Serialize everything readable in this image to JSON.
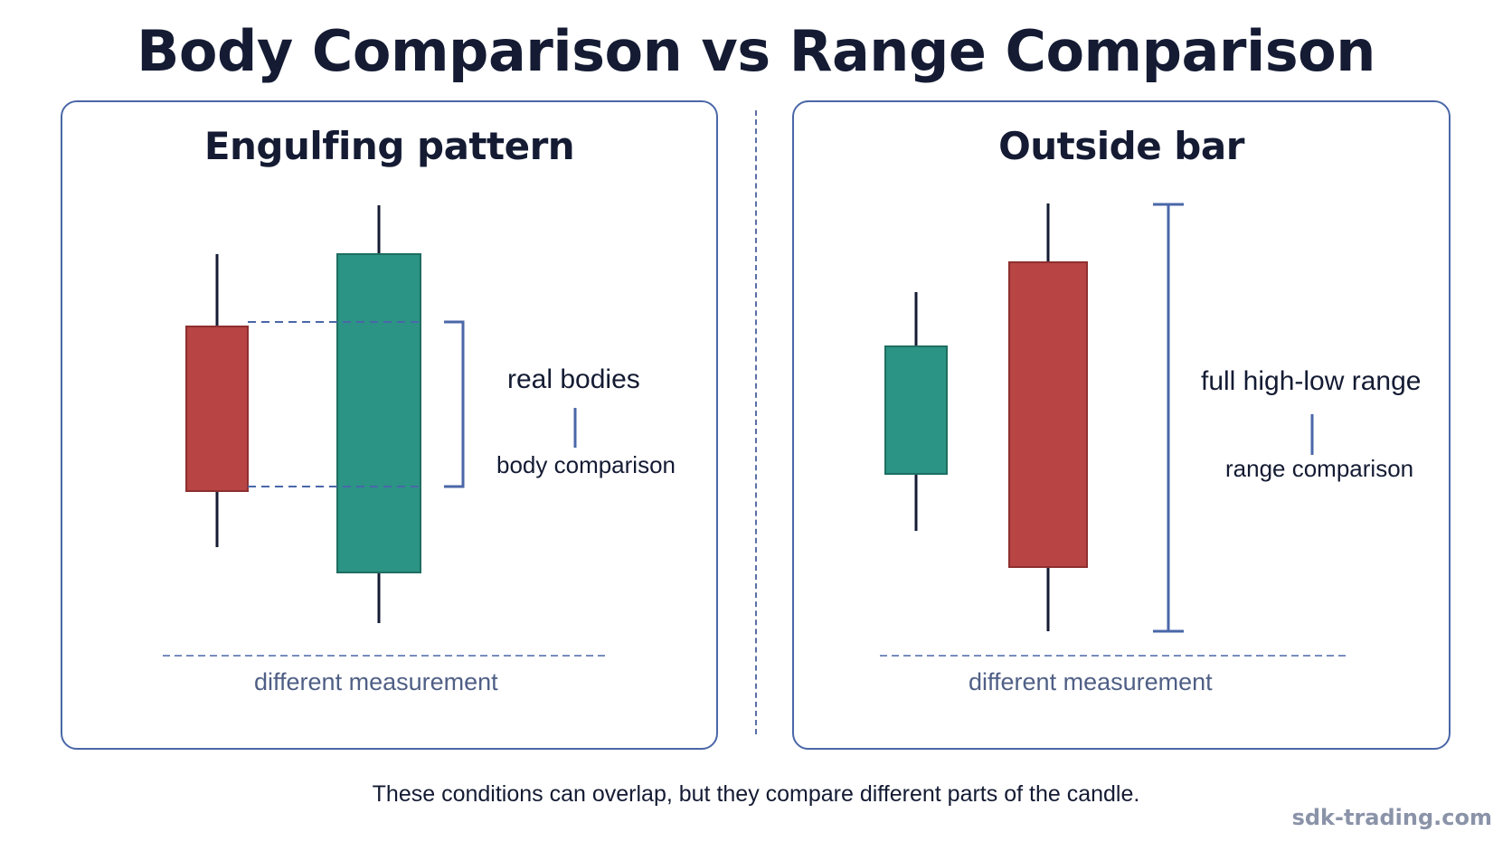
{
  "title": "Body Comparison vs Range Comparison",
  "colors": {
    "bearish": "#b84444",
    "bullish": "#2b9484",
    "accent": "#4a67a8",
    "ink": "#141b33",
    "muted": "#4f5f85"
  },
  "panels": {
    "left": {
      "title": "Engulfing pattern",
      "label_main": "real bodies",
      "label_sub": "body comparison",
      "footer": "different measurement"
    },
    "right": {
      "title": "Outside bar",
      "label_main": "full high-low range",
      "label_sub": "range comparison",
      "footer": "different measurement"
    }
  },
  "footer_note": "These conditions can overlap, but they compare different parts of the candle.",
  "watermark": "sdk-trading.com"
}
